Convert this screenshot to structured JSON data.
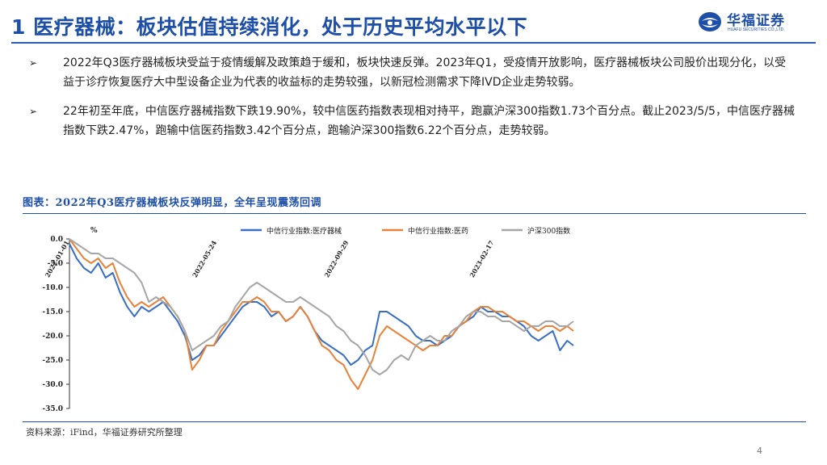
{
  "header": {
    "title": "1 医疗器械：板块估值持续消化，处于历史平均水平以下",
    "logo_text": "华福证券",
    "logo_subtext": "HUAFU SECURITIES CO.,LTD."
  },
  "bullets": [
    "2022年Q3医疗器械板块受益于疫情缓解及政策趋于缓和，板块快速反弹。2023年Q1，受疫情开放影响，医疗器械板块公司股价出现分化，以受益于诊疗恢复医疗大中型设备企业为代表的收益标的走势较强，以新冠检测需求下降IVD企业走势较弱。",
    "22年初至年底，中信医疗器械指数下跌19.90%，较中信医药指数表现相对持平，跑赢沪深300指数1.73个百分点。截止2023/5/5，中信医疗器械指数下跌2.47%，跑输中信医药指数3.42个百分点，跑输沪深300指数6.22个百分点，走势较弱。"
  ],
  "bullet_marker": "➢",
  "chart_data": {
    "type": "line",
    "title": "图表：2022年Q3医疗器械板块反弹明显，全年呈现震荡回调",
    "unit_label": "%",
    "ylim": [
      -35,
      0
    ],
    "yticks": [
      0,
      -5,
      -10,
      -15,
      -20,
      -25,
      -30,
      -35
    ],
    "ytick_labels": [
      "0.0",
      "-5.0",
      "-10.0",
      "-15.0",
      "-20.0",
      "-25.0",
      "-30.0",
      "-35.0"
    ],
    "x_range": [
      "2022-01-01",
      "2023-05-05"
    ],
    "xticks": [
      "2022-01-01",
      "2022-05-24",
      "2022-09-29",
      "2023-02-17"
    ],
    "legend_position": "top",
    "series": [
      {
        "name": "中信行业指数:医疗器械",
        "color": "#3a6fc4",
        "points": [
          [
            "2022-01-01",
            -1
          ],
          [
            "2022-01-08",
            -4
          ],
          [
            "2022-01-15",
            -6
          ],
          [
            "2022-01-22",
            -7
          ],
          [
            "2022-01-29",
            -5
          ],
          [
            "2022-02-05",
            -8
          ],
          [
            "2022-02-12",
            -7
          ],
          [
            "2022-02-19",
            -11
          ],
          [
            "2022-02-26",
            -14
          ],
          [
            "2022-03-05",
            -16
          ],
          [
            "2022-03-12",
            -14
          ],
          [
            "2022-03-19",
            -15
          ],
          [
            "2022-03-26",
            -14
          ],
          [
            "2022-04-02",
            -13
          ],
          [
            "2022-04-09",
            -15
          ],
          [
            "2022-04-16",
            -17
          ],
          [
            "2022-04-23",
            -20
          ],
          [
            "2022-04-30",
            -25
          ],
          [
            "2022-05-07",
            -24
          ],
          [
            "2022-05-14",
            -22
          ],
          [
            "2022-05-21",
            -22
          ],
          [
            "2022-05-28",
            -20
          ],
          [
            "2022-06-04",
            -18
          ],
          [
            "2022-06-11",
            -16
          ],
          [
            "2022-06-18",
            -14
          ],
          [
            "2022-06-25",
            -13
          ],
          [
            "2022-07-02",
            -13
          ],
          [
            "2022-07-09",
            -14
          ],
          [
            "2022-07-16",
            -16
          ],
          [
            "2022-07-23",
            -15
          ],
          [
            "2022-07-30",
            -17
          ],
          [
            "2022-08-06",
            -16
          ],
          [
            "2022-08-13",
            -14
          ],
          [
            "2022-08-20",
            -16
          ],
          [
            "2022-08-27",
            -19
          ],
          [
            "2022-09-03",
            -21
          ],
          [
            "2022-09-10",
            -22
          ],
          [
            "2022-09-17",
            -23
          ],
          [
            "2022-09-24",
            -24
          ],
          [
            "2022-10-01",
            -26
          ],
          [
            "2022-10-08",
            -25
          ],
          [
            "2022-10-15",
            -23
          ],
          [
            "2022-10-22",
            -22
          ],
          [
            "2022-10-29",
            -15
          ],
          [
            "2022-11-05",
            -15
          ],
          [
            "2022-11-12",
            -16
          ],
          [
            "2022-11-19",
            -17
          ],
          [
            "2022-11-26",
            -18
          ],
          [
            "2022-12-03",
            -20
          ],
          [
            "2022-12-10",
            -21
          ],
          [
            "2022-12-17",
            -21
          ],
          [
            "2022-12-24",
            -22
          ],
          [
            "2022-12-31",
            -21
          ],
          [
            "2023-01-07",
            -20
          ],
          [
            "2023-01-14",
            -18
          ],
          [
            "2023-01-21",
            -17
          ],
          [
            "2023-01-28",
            -16
          ],
          [
            "2023-02-04",
            -14
          ],
          [
            "2023-02-11",
            -15
          ],
          [
            "2023-02-18",
            -15
          ],
          [
            "2023-02-25",
            -16
          ],
          [
            "2023-03-04",
            -16
          ],
          [
            "2023-03-11",
            -17
          ],
          [
            "2023-03-18",
            -18
          ],
          [
            "2023-03-25",
            -20
          ],
          [
            "2023-04-01",
            -21
          ],
          [
            "2023-04-08",
            -20
          ],
          [
            "2023-04-15",
            -19
          ],
          [
            "2023-04-22",
            -23
          ],
          [
            "2023-04-29",
            -21
          ],
          [
            "2023-05-05",
            -22
          ]
        ]
      },
      {
        "name": "中信行业指数:医药",
        "color": "#e8823a",
        "points": [
          [
            "2022-01-01",
            0
          ],
          [
            "2022-01-08",
            -2
          ],
          [
            "2022-01-15",
            -4
          ],
          [
            "2022-01-22",
            -5
          ],
          [
            "2022-01-29",
            -4
          ],
          [
            "2022-02-05",
            -6
          ],
          [
            "2022-02-12",
            -5
          ],
          [
            "2022-02-19",
            -9
          ],
          [
            "2022-02-26",
            -12
          ],
          [
            "2022-03-05",
            -14
          ],
          [
            "2022-03-12",
            -13
          ],
          [
            "2022-03-19",
            -14
          ],
          [
            "2022-03-26",
            -13
          ],
          [
            "2022-04-02",
            -12
          ],
          [
            "2022-04-09",
            -14
          ],
          [
            "2022-04-16",
            -16
          ],
          [
            "2022-04-23",
            -19
          ],
          [
            "2022-04-30",
            -27
          ],
          [
            "2022-05-07",
            -25
          ],
          [
            "2022-05-14",
            -22
          ],
          [
            "2022-05-21",
            -22
          ],
          [
            "2022-05-28",
            -19
          ],
          [
            "2022-06-04",
            -17
          ],
          [
            "2022-06-11",
            -15
          ],
          [
            "2022-06-18",
            -13
          ],
          [
            "2022-06-25",
            -13
          ],
          [
            "2022-07-02",
            -12
          ],
          [
            "2022-07-09",
            -13
          ],
          [
            "2022-07-16",
            -15
          ],
          [
            "2022-07-23",
            -15
          ],
          [
            "2022-07-30",
            -17
          ],
          [
            "2022-08-06",
            -16
          ],
          [
            "2022-08-13",
            -14
          ],
          [
            "2022-08-20",
            -16
          ],
          [
            "2022-08-27",
            -19
          ],
          [
            "2022-09-03",
            -22
          ],
          [
            "2022-09-10",
            -23
          ],
          [
            "2022-09-17",
            -25
          ],
          [
            "2022-09-24",
            -26
          ],
          [
            "2022-10-01",
            -29
          ],
          [
            "2022-10-08",
            -31
          ],
          [
            "2022-10-15",
            -28
          ],
          [
            "2022-10-22",
            -25
          ],
          [
            "2022-10-29",
            -20
          ],
          [
            "2022-11-05",
            -18
          ],
          [
            "2022-11-12",
            -19
          ],
          [
            "2022-11-19",
            -20
          ],
          [
            "2022-11-26",
            -21
          ],
          [
            "2022-12-03",
            -22
          ],
          [
            "2022-12-10",
            -23
          ],
          [
            "2022-12-17",
            -22
          ],
          [
            "2022-12-24",
            -22
          ],
          [
            "2022-12-31",
            -20
          ],
          [
            "2023-01-07",
            -20
          ],
          [
            "2023-01-14",
            -18
          ],
          [
            "2023-01-21",
            -17
          ],
          [
            "2023-01-28",
            -15
          ],
          [
            "2023-02-04",
            -14
          ],
          [
            "2023-02-11",
            -14
          ],
          [
            "2023-02-18",
            -15
          ],
          [
            "2023-02-25",
            -15
          ],
          [
            "2023-03-04",
            -16
          ],
          [
            "2023-03-11",
            -17
          ],
          [
            "2023-03-18",
            -17
          ],
          [
            "2023-03-25",
            -18
          ],
          [
            "2023-04-01",
            -19
          ],
          [
            "2023-04-08",
            -18
          ],
          [
            "2023-04-15",
            -18
          ],
          [
            "2023-04-22",
            -19
          ],
          [
            "2023-04-29",
            -18
          ],
          [
            "2023-05-05",
            -19
          ]
        ]
      },
      {
        "name": "沪深300指数",
        "color": "#a6a6a6",
        "points": [
          [
            "2022-01-01",
            0
          ],
          [
            "2022-01-08",
            -1
          ],
          [
            "2022-01-15",
            -2
          ],
          [
            "2022-01-22",
            -3
          ],
          [
            "2022-01-29",
            -3
          ],
          [
            "2022-02-05",
            -4
          ],
          [
            "2022-02-12",
            -4
          ],
          [
            "2022-02-19",
            -5
          ],
          [
            "2022-02-26",
            -6
          ],
          [
            "2022-03-05",
            -7
          ],
          [
            "2022-03-12",
            -9
          ],
          [
            "2022-03-19",
            -13
          ],
          [
            "2022-03-26",
            -12
          ],
          [
            "2022-04-02",
            -13
          ],
          [
            "2022-04-09",
            -14
          ],
          [
            "2022-04-16",
            -16
          ],
          [
            "2022-04-23",
            -19
          ],
          [
            "2022-04-30",
            -23
          ],
          [
            "2022-05-07",
            -22
          ],
          [
            "2022-05-14",
            -21
          ],
          [
            "2022-05-21",
            -20
          ],
          [
            "2022-05-28",
            -18
          ],
          [
            "2022-06-04",
            -17
          ],
          [
            "2022-06-11",
            -14
          ],
          [
            "2022-06-18",
            -12
          ],
          [
            "2022-06-25",
            -10
          ],
          [
            "2022-07-02",
            -9
          ],
          [
            "2022-07-09",
            -10
          ],
          [
            "2022-07-16",
            -11
          ],
          [
            "2022-07-23",
            -12
          ],
          [
            "2022-07-30",
            -13
          ],
          [
            "2022-08-06",
            -13
          ],
          [
            "2022-08-13",
            -12
          ],
          [
            "2022-08-20",
            -13
          ],
          [
            "2022-08-27",
            -14
          ],
          [
            "2022-09-03",
            -15
          ],
          [
            "2022-09-10",
            -16
          ],
          [
            "2022-09-17",
            -18
          ],
          [
            "2022-09-24",
            -19
          ],
          [
            "2022-10-01",
            -21
          ],
          [
            "2022-10-08",
            -22
          ],
          [
            "2022-10-15",
            -24
          ],
          [
            "2022-10-22",
            -27
          ],
          [
            "2022-10-29",
            -28
          ],
          [
            "2022-11-05",
            -27
          ],
          [
            "2022-11-12",
            -25
          ],
          [
            "2022-11-19",
            -24
          ],
          [
            "2022-11-26",
            -25
          ],
          [
            "2022-12-03",
            -22
          ],
          [
            "2022-12-10",
            -21
          ],
          [
            "2022-12-17",
            -20
          ],
          [
            "2022-12-24",
            -21
          ],
          [
            "2022-12-31",
            -21
          ],
          [
            "2023-01-07",
            -19
          ],
          [
            "2023-01-14",
            -18
          ],
          [
            "2023-01-21",
            -16
          ],
          [
            "2023-01-28",
            -15
          ],
          [
            "2023-02-04",
            -15
          ],
          [
            "2023-02-11",
            -16
          ],
          [
            "2023-02-18",
            -16
          ],
          [
            "2023-02-25",
            -17
          ],
          [
            "2023-03-04",
            -17
          ],
          [
            "2023-03-11",
            -18
          ],
          [
            "2023-03-18",
            -19
          ],
          [
            "2023-03-25",
            -18
          ],
          [
            "2023-04-01",
            -18
          ],
          [
            "2023-04-08",
            -17
          ],
          [
            "2023-04-15",
            -17
          ],
          [
            "2023-04-22",
            -18
          ],
          [
            "2023-04-29",
            -18
          ],
          [
            "2023-05-05",
            -17
          ]
        ]
      }
    ]
  },
  "source": "资料来源：iFind，华福证券研究所整理",
  "page_number": "4"
}
